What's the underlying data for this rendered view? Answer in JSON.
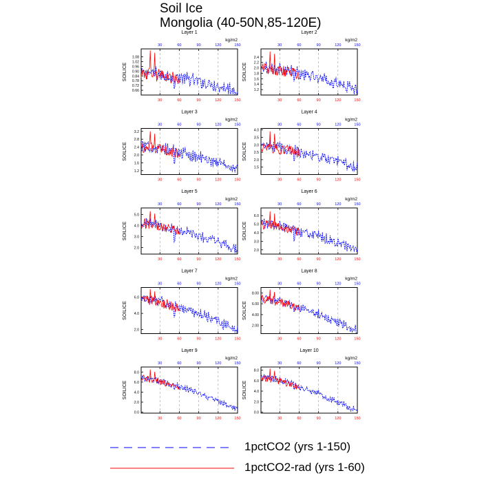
{
  "title": "Soil Ice",
  "subtitle": "Mongolia (40-50N,85-120E)",
  "colors": {
    "series1": "#0000ff",
    "series2": "#ff0000",
    "axis": "#000000",
    "grid": "#999999"
  },
  "chart_data": {
    "type": "line",
    "ylabel": "SOILICE",
    "top_axis_unit": "kg/m2",
    "x_tick_labels": [
      "30",
      "60",
      "90",
      "120",
      "150"
    ],
    "xlim": [
      1,
      150
    ],
    "grid": "vertical dashed",
    "series": [
      {
        "name": "1pctCO2 (yrs 1-150)",
        "years": [
          1,
          150
        ],
        "style": "dashed",
        "color": "#0000ff"
      },
      {
        "name": "1pctCO2-rad (yrs 1-60)",
        "years": [
          1,
          60
        ],
        "style": "solid",
        "color": "#ff0000"
      }
    ],
    "panels": [
      {
        "label": "Layer 1",
        "ylim": [
          0.6,
          1.18
        ],
        "yticks": [
          "0.66",
          "0.72",
          "0.78",
          "0.84",
          "0.90",
          "0.96",
          "1.02",
          "1.08"
        ],
        "start": 0.87,
        "end": 0.64,
        "noise": 0.07,
        "bump": 1.16,
        "dip": [
          0.68,
          0.7
        ]
      },
      {
        "label": "Layer 2",
        "ylim": [
          1.0,
          2.7
        ],
        "yticks": [
          "1.2",
          "1.4",
          "1.6",
          "1.8",
          "2.0",
          "2.2",
          "2.4"
        ],
        "start": 2.0,
        "end": 1.15,
        "noise": 0.18,
        "bump": 2.6,
        "dip": [
          1.5,
          1.6
        ]
      },
      {
        "label": "Layer 3",
        "ylim": [
          1.0,
          3.35
        ],
        "yticks": [
          "1.2",
          "1.6",
          "2.0",
          "2.4",
          "2.8",
          "3.2"
        ],
        "start": 2.4,
        "end": 1.25,
        "noise": 0.25,
        "bump": 3.2,
        "dip": [
          1.55,
          1.6
        ]
      },
      {
        "label": "Layer 4",
        "ylim": [
          1.0,
          4.1
        ],
        "yticks": [
          "1.5",
          "2.0",
          "2.5",
          "3.0",
          "3.5",
          "4.0"
        ],
        "start": 2.9,
        "end": 1.35,
        "noise": 0.32,
        "bump": 3.9,
        "dip": [
          1.9,
          2.0
        ]
      },
      {
        "label": "Layer 5",
        "ylim": [
          1.4,
          5.6
        ],
        "yticks": [
          "2.0",
          "3.0",
          "4.0",
          "5.0"
        ],
        "start": 4.2,
        "end": 1.7,
        "noise": 0.4,
        "bump": 5.3,
        "dip": [
          2.5,
          2.6
        ]
      },
      {
        "label": "Layer 6",
        "ylim": [
          1.5,
          6.9
        ],
        "yticks": [
          "2.0",
          "3.0",
          "4.0",
          "5.0",
          "6.0"
        ],
        "start": 5.0,
        "end": 1.85,
        "noise": 0.5,
        "bump": 6.5,
        "dip": [
          3.0,
          3.2
        ]
      },
      {
        "label": "Layer 7",
        "ylim": [
          1.5,
          7.2
        ],
        "yticks": [
          "2.0",
          "4.0",
          "6.0"
        ],
        "start": 5.8,
        "end": 1.8,
        "noise": 0.55,
        "bump": 7.0,
        "dip": [
          3.5,
          3.7
        ]
      },
      {
        "label": "Layer 8",
        "ylim": [
          0.5,
          9.0
        ],
        "yticks": [
          "2.00",
          "4.00",
          "6.00",
          "8.00"
        ],
        "start": 6.9,
        "end": 0.9,
        "noise": 0.7,
        "bump": 8.6,
        "dip": [
          4.5,
          4.7
        ]
      },
      {
        "label": "Layer 9",
        "ylim": [
          -0.2,
          9.0
        ],
        "yticks": [
          "0.0",
          "2.0",
          "4.0",
          "6.0",
          "8.0"
        ],
        "start": 6.8,
        "end": 0.4,
        "noise": 0.55,
        "bump": 8.5,
        "dip": [
          4.5,
          4.7
        ]
      },
      {
        "label": "Layer 10",
        "ylim": [
          -0.2,
          8.6
        ],
        "yticks": [
          "0.0",
          "2.0",
          "4.0",
          "6.0",
          "8.0"
        ],
        "start": 6.6,
        "end": 0.1,
        "noise": 0.55,
        "bump": 8.3,
        "dip": [
          4.3,
          4.5
        ]
      }
    ]
  },
  "legend": [
    {
      "label": "1pctCO2 (yrs 1-150)",
      "style": "dashed",
      "color": "#0000ff"
    },
    {
      "label": "1pctCO2-rad (yrs 1-60)",
      "style": "solid",
      "color": "#ff0000"
    }
  ]
}
